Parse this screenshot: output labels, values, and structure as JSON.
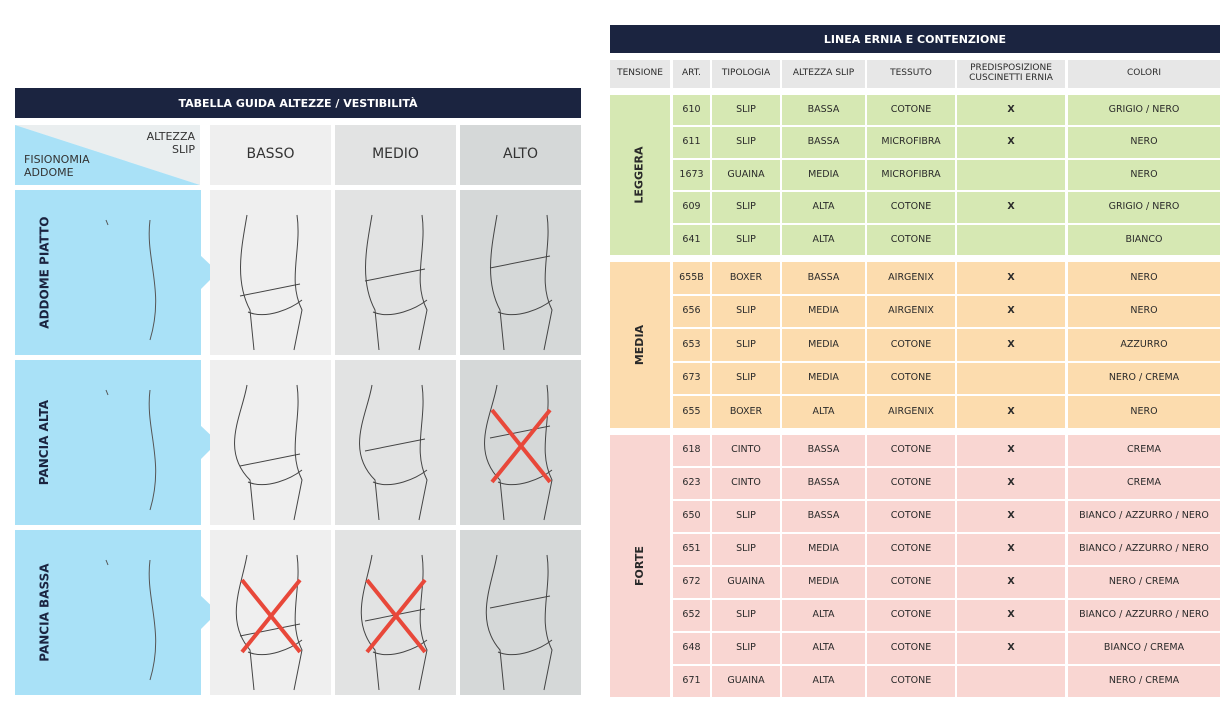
{
  "size_guide": {
    "title": "TABELLA GUIDA ALTEZZE / VESTIBILITÀ",
    "corner": {
      "column_axis": "ALTEZZA SLIP",
      "row_axis": "FISIONOMIA ADDOME"
    },
    "columns": [
      "BASSO",
      "MEDIO",
      "ALTO"
    ],
    "rows": [
      "ADDOME PIATTO",
      "PANCIA ALTA",
      "PANCIA BASSA"
    ]
  },
  "product_table": {
    "title": "LINEA ERNIA E CONTENZIONE",
    "headers": [
      "TENSIONE",
      "ART.",
      "TIPOLOGIA",
      "ALTEZZA SLIP",
      "TESSUTO",
      "PREDISPOSIZIONE CUSCINETTI ERNIA",
      "COLORI"
    ],
    "groups": [
      {
        "tension": "LEGGERA",
        "rows": [
          [
            "610",
            "SLIP",
            "BASSA",
            "COTONE",
            "X",
            "GRIGIO / NERO"
          ],
          [
            "611",
            "SLIP",
            "BASSA",
            "MICROFIBRA",
            "X",
            "NERO"
          ],
          [
            "1673",
            "GUAINA",
            "MEDIA",
            "MICROFIBRA",
            null,
            "NERO"
          ],
          [
            "609",
            "SLIP",
            "ALTA",
            "COTONE",
            "X",
            "GRIGIO / NERO"
          ],
          [
            "641",
            "SLIP",
            "ALTA",
            "COTONE",
            null,
            "BIANCO"
          ]
        ]
      },
      {
        "tension": "MEDIA",
        "rows": [
          [
            "655B",
            "BOXER",
            "BASSA",
            "AIRGENIX",
            "X",
            "NERO"
          ],
          [
            "656",
            "SLIP",
            "MEDIA",
            "AIRGENIX",
            "X",
            "NERO"
          ],
          [
            "653",
            "SLIP",
            "MEDIA",
            "COTONE",
            "X",
            "AZZURRO"
          ],
          [
            "673",
            "SLIP",
            "MEDIA",
            "COTONE",
            null,
            "NERO / CREMA"
          ],
          [
            "655",
            "BOXER",
            "ALTA",
            "AIRGENIX",
            "X",
            "NERO"
          ]
        ]
      },
      {
        "tension": "FORTE",
        "rows": [
          [
            "618",
            "CINTO",
            "BASSA",
            "COTONE",
            "X",
            "CREMA"
          ],
          [
            "623",
            "CINTO",
            "BASSA",
            "COTONE",
            "X",
            "CREMA"
          ],
          [
            "650",
            "SLIP",
            "BASSA",
            "COTONE",
            "X",
            "BIANCO / AZZURRO / NERO"
          ],
          [
            "651",
            "SLIP",
            "MEDIA",
            "COTONE",
            "X",
            "BIANCO / AZZURRO / NERO"
          ],
          [
            "672",
            "GUAINA",
            "MEDIA",
            "COTONE",
            "X",
            "NERO / CREMA"
          ],
          [
            "652",
            "SLIP",
            "ALTA",
            "COTONE",
            "X",
            "BIANCO / AZZURRO / NERO"
          ],
          [
            "648",
            "SLIP",
            "ALTA",
            "COTONE",
            "X",
            "BIANCO / CREMA"
          ],
          [
            "671",
            "GUAINA",
            "ALTA",
            "COTONE",
            null,
            "NERO / CREMA"
          ]
        ]
      }
    ]
  }
}
